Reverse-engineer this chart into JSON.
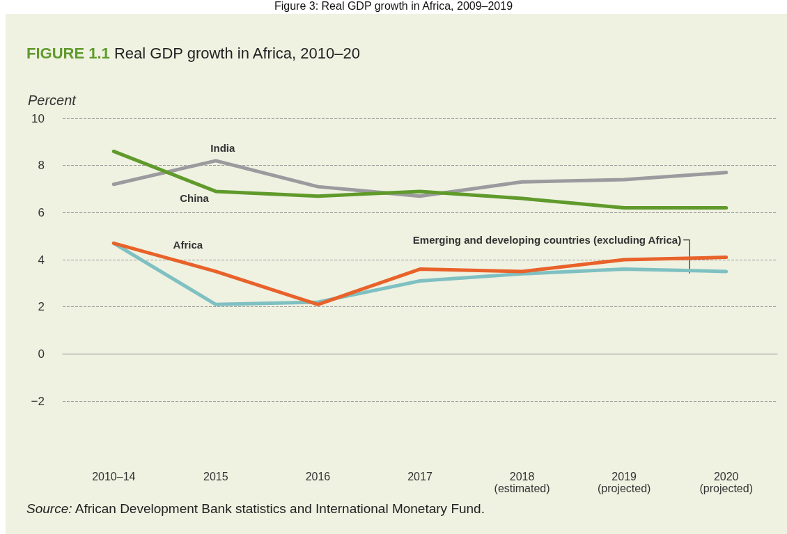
{
  "chart_data": {
    "type": "line",
    "title": "Figure 3: Real GDP growth in Africa, 2009–2019",
    "subtitle": "FIGURE 1.1 Real GDP growth in Africa, 2010–20",
    "ylabel": "Percent",
    "categories": [
      "2010–14",
      "2015",
      "2016",
      "2017",
      "2018\n(estimated)",
      "2019\n(projected)",
      "2020\n(projected)"
    ],
    "series": [
      {
        "name": "India",
        "color": "#9b9b9f",
        "values": [
          7.2,
          8.2,
          7.1,
          6.7,
          7.3,
          7.4,
          7.7
        ]
      },
      {
        "name": "China",
        "color": "#5f9a2b",
        "values": [
          8.6,
          6.9,
          6.7,
          6.9,
          6.6,
          6.2,
          6.2
        ]
      },
      {
        "name": "Emerging and developing countries (excluding Africa)",
        "color": "#7fc0c2",
        "values": [
          4.7,
          2.1,
          2.2,
          3.1,
          3.4,
          3.6,
          3.5
        ]
      },
      {
        "name": "Africa",
        "color": "#e8622a",
        "values": [
          4.7,
          3.5,
          2.1,
          3.6,
          3.5,
          4.0,
          4.1
        ]
      }
    ],
    "ylim": [
      -2,
      10
    ],
    "yticks": [
      -2,
      0,
      2,
      4,
      6,
      8,
      10
    ],
    "grid": "y",
    "legend": false,
    "marker": "none",
    "line_style": "solid",
    "annotations": [
      "Source: African Development Bank statistics and International Monetary Fund."
    ]
  }
}
